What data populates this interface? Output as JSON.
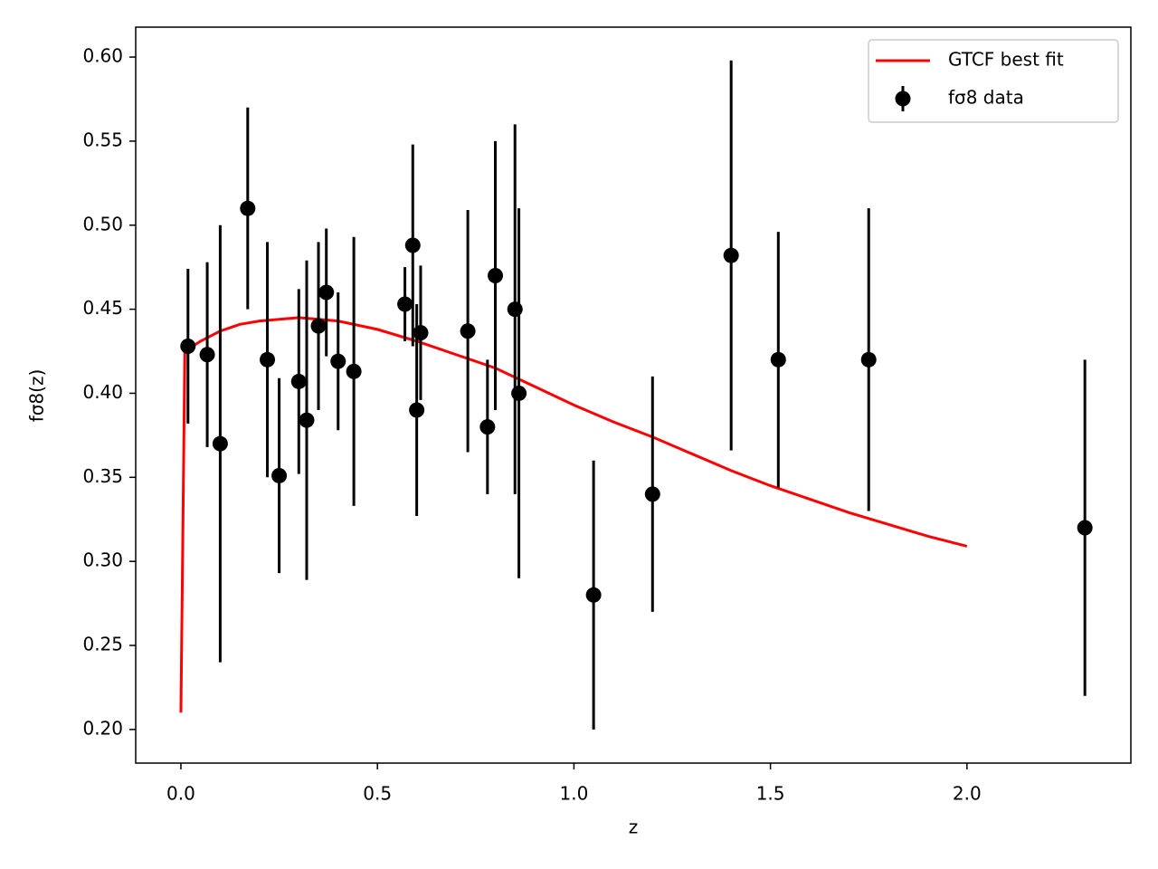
{
  "chart_data": {
    "type": "errorbar",
    "xlabel": "z",
    "ylabel": "fσ8(z)",
    "xlim": [
      -0.115,
      2.417
    ],
    "ylim": [
      0.18,
      0.6178
    ],
    "xticks": [
      {
        "value": 0,
        "label": "0.0"
      },
      0.5,
      {
        "value": 1,
        "label": "1.0"
      },
      1.5,
      {
        "value": 2,
        "label": "2.0"
      }
    ],
    "yticks": [
      {
        "value": 0.2,
        "label": "0.20"
      },
      0.25,
      {
        "value": 0.3,
        "label": "0.30"
      },
      0.35,
      {
        "value": 0.4,
        "label": "0.40"
      },
      0.45,
      {
        "value": 0.5,
        "label": "0.50"
      },
      0.55,
      {
        "value": 0.6,
        "label": "0.60"
      }
    ],
    "legend": "upper right",
    "series": [
      {
        "name": "GTCF best fit",
        "type": "line",
        "color": "#ff0000",
        "x": [
          0,
          0.01,
          0.05,
          0.1,
          0.15,
          0.2,
          0.3,
          0.4,
          0.5,
          0.6,
          0.7,
          0.8,
          0.9,
          1.0,
          1.1,
          1.2,
          1.3,
          1.4,
          1.5,
          1.6,
          1.7,
          1.8,
          1.9,
          2.0
        ],
        "values": [
          0.21,
          0.425,
          0.431,
          0.437,
          0.441,
          0.443,
          0.445,
          0.443,
          0.438,
          0.431,
          0.423,
          0.415,
          0.404,
          0.393,
          0.383,
          0.374,
          0.364,
          0.354,
          0.345,
          0.337,
          0.329,
          0.322,
          0.315,
          0.309
        ]
      },
      {
        "name": "fσ8 data",
        "type": "errorbar",
        "color": "#000000",
        "x": [
          0.018,
          0.067,
          0.1,
          0.17,
          0.22,
          0.25,
          0.3,
          0.32,
          0.35,
          0.37,
          0.4,
          0.44,
          0.57,
          0.59,
          0.6,
          0.61,
          0.73,
          0.78,
          0.8,
          0.85,
          0.86,
          1.05,
          1.2,
          1.4,
          1.52,
          1.75,
          2.3
        ],
        "values": [
          0.428,
          0.423,
          0.37,
          0.51,
          0.42,
          0.351,
          0.407,
          0.384,
          0.44,
          0.46,
          0.419,
          0.413,
          0.453,
          0.488,
          0.39,
          0.436,
          0.437,
          0.38,
          0.47,
          0.45,
          0.4,
          0.28,
          0.34,
          0.482,
          0.42,
          0.42,
          0.32
        ],
        "errors": [
          0.046,
          0.055,
          0.13,
          0.06,
          0.07,
          0.058,
          0.055,
          0.095,
          0.05,
          0.038,
          0.041,
          0.08,
          0.022,
          0.06,
          0.063,
          0.04,
          0.072,
          0.04,
          0.08,
          0.11,
          0.11,
          0.08,
          0.07,
          0.116,
          0.076,
          0.09,
          0.1
        ]
      }
    ]
  }
}
